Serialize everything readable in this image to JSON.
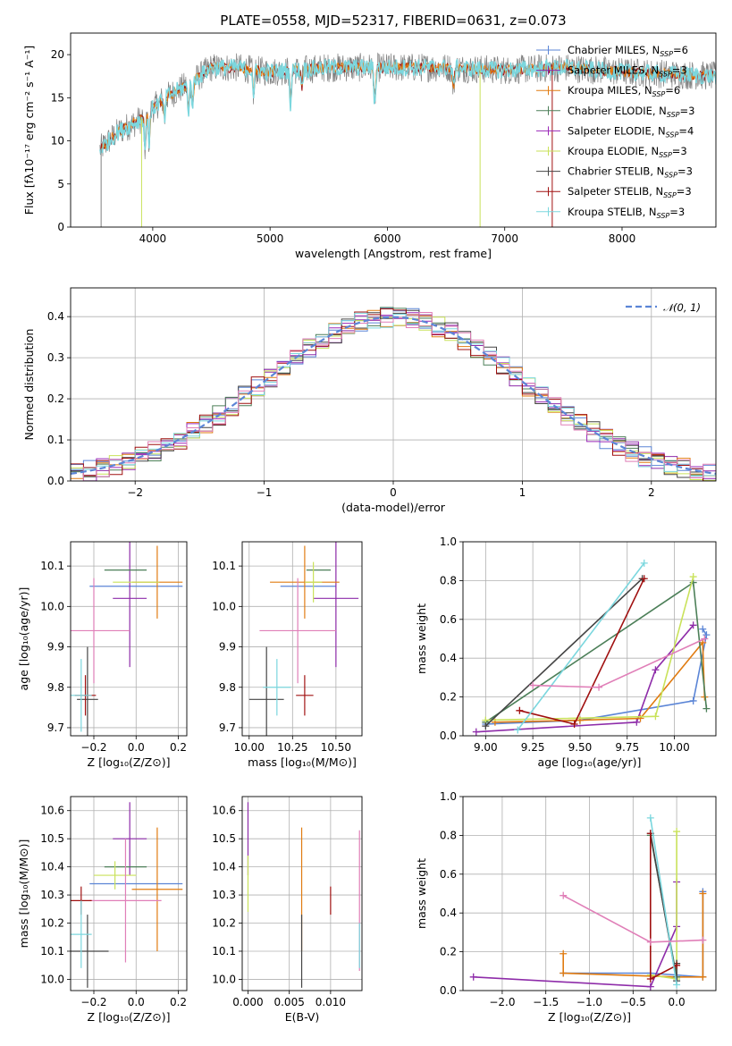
{
  "colors": {
    "s1": "#5b85d6",
    "s2": "#8e2ca9",
    "s3": "#e07b10",
    "s4": "#4c7f58",
    "s5": "#9a27b8",
    "s6": "#c9e25a",
    "s7": "#444444",
    "s8": "#a01010",
    "s9": "#7bd7de",
    "s10": "#e07fb8",
    "grid": "#b0b0b0",
    "spectrum_grey": "#808080"
  },
  "chart_data": [
    {
      "id": "spectrum",
      "type": "line",
      "title": "PLATE=0558, MJD=52317, FIBERID=0631, z=0.073",
      "xlabel": "wavelength [Angstrom, rest frame]",
      "ylabel": "Flux [fλ10⁻¹⁷ erg cm⁻² s⁻¹ A⁻¹]",
      "xlim": [
        3300,
        8800
      ],
      "ylim": [
        0,
        22.5
      ],
      "xticks": [
        "4000",
        "5000",
        "6000",
        "7000",
        "8000"
      ],
      "yticks": [
        "0",
        "5",
        "10",
        "15",
        "20"
      ],
      "grid": false,
      "legend_position": "top-right",
      "legend": [
        "Chabrier MILES, N_SSP=6",
        "Salpeter MILES, N_SSP=3",
        "Kroupa MILES, N_SSP=6",
        "Chabrier ELODIE, N_SSP=3",
        "Salpeter ELODIE, N_SSP=4",
        "Kroupa ELODIE, N_SSP=3",
        "Chabrier STELIB, N_SSP=3",
        "Salpeter STELIB, N_SSP=3",
        "Kroupa STELIB, N_SSP=3"
      ],
      "continuum": [
        [
          3550,
          9
        ],
        [
          3700,
          11
        ],
        [
          3900,
          12.5
        ],
        [
          4100,
          15
        ],
        [
          4300,
          16.5
        ],
        [
          4500,
          18.5
        ],
        [
          4700,
          18.5
        ],
        [
          5000,
          18
        ],
        [
          5500,
          18.5
        ],
        [
          6000,
          18.5
        ],
        [
          6500,
          18.5
        ],
        [
          7000,
          18.2
        ],
        [
          7500,
          18.5
        ],
        [
          8000,
          18
        ],
        [
          8800,
          17.5
        ]
      ]
    },
    {
      "id": "residuals",
      "type": "line",
      "xlabel": "(data-model)/error",
      "ylabel": "Normed distribution",
      "xlim": [
        -2.5,
        2.5
      ],
      "ylim": [
        0,
        0.47
      ],
      "xticks": [
        "−2",
        "−1",
        "0",
        "1",
        "2"
      ],
      "yticks": [
        "0.0",
        "0.1",
        "0.2",
        "0.3",
        "0.4"
      ],
      "grid": true,
      "legend_position": "top-right",
      "legend": [
        "𝒩(0, 1)"
      ],
      "series": [
        {
          "name": "𝒩(0, 1)",
          "mean": 0,
          "sigma": 1
        }
      ],
      "histogram_bin_width": 0.1
    },
    {
      "id": "age-vs-Z",
      "type": "scatter",
      "xlabel": "Z [log₁₀(Z/Z⊙)]",
      "ylabel": "age  [log₁₀(age/yr)]",
      "xlim": [
        -0.31,
        0.24
      ],
      "ylim": [
        9.68,
        10.16
      ],
      "xticks": [
        "−0.2",
        "0.0",
        "0.2"
      ],
      "yticks": [
        "9.7",
        "9.8",
        "9.9",
        "10.0",
        "10.1"
      ],
      "grid": true,
      "points": [
        {
          "x": 0.0,
          "y": 10.05,
          "xerr": 0.22,
          "yerr": 0.0,
          "c": "s1"
        },
        {
          "x": -0.03,
          "y": 10.02,
          "xerr": 0.08,
          "yerr": 0.17,
          "c": "s2"
        },
        {
          "x": 0.1,
          "y": 10.06,
          "xerr": 0.12,
          "yerr": 0.09,
          "c": "s3"
        },
        {
          "x": -0.05,
          "y": 10.09,
          "xerr": 0.1,
          "yerr": 0.0,
          "c": "s4"
        },
        {
          "x": 0.0,
          "y": 10.06,
          "xerr": 0.11,
          "yerr": 0.0,
          "c": "s6"
        },
        {
          "x": -0.2,
          "y": 9.94,
          "xerr": 0.17,
          "yerr": 0.13,
          "c": "s10"
        },
        {
          "x": -0.23,
          "y": 9.77,
          "xerr": 0.05,
          "yerr": 0.13,
          "c": "s7"
        },
        {
          "x": -0.24,
          "y": 9.78,
          "xerr": 0.05,
          "yerr": 0.05,
          "c": "s8"
        },
        {
          "x": -0.26,
          "y": 9.78,
          "xerr": 0.05,
          "yerr": 0.09,
          "c": "s9"
        }
      ]
    },
    {
      "id": "age-vs-mass",
      "type": "scatter",
      "xlabel": "mass [log₁₀(M/M⊙)]",
      "ylabel": "",
      "xlim": [
        9.96,
        10.65
      ],
      "ylim": [
        9.68,
        10.16
      ],
      "xticks": [
        "10.00",
        "10.25",
        "10.50"
      ],
      "yticks": [
        "9.7",
        "9.8",
        "9.9",
        "10.0",
        "10.1"
      ],
      "grid": true,
      "points": [
        {
          "x": 10.34,
          "y": 10.05,
          "xerr": 0.16,
          "yerr": 0.0,
          "c": "s1"
        },
        {
          "x": 10.5,
          "y": 10.02,
          "xerr": 0.13,
          "yerr": 0.17,
          "c": "s2"
        },
        {
          "x": 10.32,
          "y": 10.06,
          "xerr": 0.2,
          "yerr": 0.09,
          "c": "s3"
        },
        {
          "x": 10.4,
          "y": 10.09,
          "xerr": 0.07,
          "yerr": 0.0,
          "c": "s4"
        },
        {
          "x": 10.37,
          "y": 10.06,
          "xerr": 0.05,
          "yerr": 0.05,
          "c": "s6"
        },
        {
          "x": 10.28,
          "y": 9.94,
          "xerr": 0.22,
          "yerr": 0.13,
          "c": "s10"
        },
        {
          "x": 10.1,
          "y": 9.77,
          "xerr": 0.1,
          "yerr": 0.13,
          "c": "s7"
        },
        {
          "x": 10.32,
          "y": 9.78,
          "xerr": 0.05,
          "yerr": 0.05,
          "c": "s8"
        },
        {
          "x": 10.16,
          "y": 9.8,
          "xerr": 0.08,
          "yerr": 0.07,
          "c": "s9"
        }
      ]
    },
    {
      "id": "weight-vs-age",
      "type": "line",
      "xlabel": "age  [log₁₀(age/yr)]",
      "ylabel": "mass weight",
      "xlim": [
        8.88,
        10.22
      ],
      "ylim": [
        0.0,
        1.0
      ],
      "xticks": [
        "9.00",
        "9.25",
        "9.50",
        "9.75",
        "10.00"
      ],
      "yticks": [
        "0.0",
        "0.2",
        "0.4",
        "0.6",
        "0.8",
        "1.0"
      ],
      "grid": true,
      "series": [
        {
          "c": "s1",
          "x": [
            9.0,
            9.5,
            10.1,
            10.17,
            10.15
          ],
          "y": [
            0.06,
            0.08,
            0.18,
            0.52,
            0.55
          ]
        },
        {
          "c": "s2",
          "x": [
            8.95,
            9.8,
            9.9,
            10.1
          ],
          "y": [
            0.02,
            0.07,
            0.34,
            0.57
          ]
        },
        {
          "c": "s3",
          "x": [
            9.05,
            9.5,
            9.82,
            10.15,
            10.16
          ],
          "y": [
            0.07,
            0.08,
            0.09,
            0.48,
            0.2
          ]
        },
        {
          "c": "s4",
          "x": [
            9.0,
            10.1,
            10.17
          ],
          "y": [
            0.07,
            0.79,
            0.14
          ]
        },
        {
          "c": "s6",
          "x": [
            9.0,
            9.9,
            10.1
          ],
          "y": [
            0.08,
            0.1,
            0.82
          ]
        },
        {
          "c": "s7",
          "x": [
            9.0,
            9.83
          ],
          "y": [
            0.05,
            0.81
          ]
        },
        {
          "c": "s8",
          "x": [
            9.18,
            9.47,
            9.84
          ],
          "y": [
            0.13,
            0.06,
            0.81
          ]
        },
        {
          "c": "s9",
          "x": [
            9.17,
            9.84
          ],
          "y": [
            0.03,
            0.89
          ]
        },
        {
          "c": "s10",
          "x": [
            9.25,
            9.6,
            10.16
          ],
          "y": [
            0.26,
            0.25,
            0.5
          ]
        }
      ]
    },
    {
      "id": "mass-vs-Z",
      "type": "scatter",
      "xlabel": "Z [log₁₀(Z/Z⊙)]",
      "ylabel": "mass [log₁₀(M/M⊙)]",
      "xlim": [
        -0.31,
        0.24
      ],
      "ylim": [
        9.96,
        10.65
      ],
      "xticks": [
        "−0.2",
        "0.0",
        "0.2"
      ],
      "yticks": [
        "10.0",
        "10.1",
        "10.2",
        "10.3",
        "10.4",
        "10.5",
        "10.6"
      ],
      "grid": true,
      "points": [
        {
          "x": 0.0,
          "y": 10.34,
          "xerr": 0.22,
          "yerr": 0.0,
          "c": "s1"
        },
        {
          "x": -0.03,
          "y": 10.5,
          "xerr": 0.08,
          "yerr": 0.13,
          "c": "s2"
        },
        {
          "x": 0.1,
          "y": 10.32,
          "xerr": 0.12,
          "yerr": 0.22,
          "c": "s3"
        },
        {
          "x": -0.05,
          "y": 10.4,
          "xerr": 0.1,
          "yerr": 0.0,
          "c": "s4"
        },
        {
          "x": -0.1,
          "y": 10.37,
          "xerr": 0.1,
          "yerr": 0.05,
          "c": "s6"
        },
        {
          "x": -0.05,
          "y": 10.28,
          "xerr": 0.17,
          "yerr": 0.22,
          "c": "s10"
        },
        {
          "x": -0.23,
          "y": 10.1,
          "xerr": 0.1,
          "yerr": 0.13,
          "c": "s7"
        },
        {
          "x": -0.26,
          "y": 10.28,
          "xerr": 0.05,
          "yerr": 0.05,
          "c": "s8"
        },
        {
          "x": -0.26,
          "y": 10.16,
          "xerr": 0.05,
          "yerr": 0.12,
          "c": "s9"
        }
      ]
    },
    {
      "id": "mass-vs-EBV",
      "type": "scatter",
      "xlabel": "E(B-V)",
      "ylabel": "",
      "xlim": [
        -0.0007,
        0.0138
      ],
      "ylim": [
        9.96,
        10.65
      ],
      "xticks": [
        "0.000",
        "0.005",
        "0.010"
      ],
      "yticks": [
        "10.0",
        "10.1",
        "10.2",
        "10.3",
        "10.4",
        "10.5",
        "10.6"
      ],
      "grid": true,
      "points": [
        {
          "x": 0.0,
          "y": 10.5,
          "xerr": 0,
          "yerr": 0.13,
          "c": "s2"
        },
        {
          "x": 0.0,
          "y": 10.34,
          "xerr": 0,
          "yerr": 0.1,
          "c": "s6"
        },
        {
          "x": 0.0065,
          "y": 10.32,
          "xerr": 0,
          "yerr": 0.22,
          "c": "s3"
        },
        {
          "x": 0.0065,
          "y": 10.1,
          "xerr": 0,
          "yerr": 0.13,
          "c": "s7"
        },
        {
          "x": 0.01,
          "y": 10.28,
          "xerr": 0,
          "yerr": 0.05,
          "c": "s8"
        },
        {
          "x": 0.0135,
          "y": 10.28,
          "xerr": 0,
          "yerr": 0.25,
          "c": "s10"
        },
        {
          "x": 0.0135,
          "y": 10.12,
          "xerr": 0,
          "yerr": 0.08,
          "c": "s9"
        }
      ]
    },
    {
      "id": "weight-vs-Z",
      "type": "line",
      "xlabel": "Z [log₁₀(Z/Z⊙)]",
      "ylabel": "mass weight",
      "xlim": [
        -2.45,
        0.45
      ],
      "ylim": [
        0.0,
        1.0
      ],
      "xticks": [
        "−2.0",
        "−1.5",
        "−1.0",
        "−0.5",
        "0.0"
      ],
      "yticks": [
        "0.0",
        "0.2",
        "0.4",
        "0.6",
        "0.8",
        "1.0"
      ],
      "grid": true,
      "series": [
        {
          "c": "s1",
          "x": [
            -1.3,
            -0.3,
            0.3,
            0.3
          ],
          "y": [
            0.09,
            0.09,
            0.07,
            0.51
          ]
        },
        {
          "c": "s2",
          "x": [
            -2.33,
            -0.3,
            0.0,
            0.0
          ],
          "y": [
            0.07,
            0.02,
            0.33,
            0.56
          ]
        },
        {
          "c": "s3",
          "x": [
            -1.3,
            -1.3,
            0.0,
            0.3,
            0.3
          ],
          "y": [
            0.19,
            0.09,
            0.07,
            0.07,
            0.5
          ]
        },
        {
          "c": "s4",
          "x": [
            -0.3,
            0.0,
            0.0
          ],
          "y": [
            0.8,
            0.07,
            0.14
          ]
        },
        {
          "c": "s6",
          "x": [
            -0.3,
            0.0,
            0.0
          ],
          "y": [
            0.08,
            0.06,
            0.82
          ]
        },
        {
          "c": "s7",
          "x": [
            -0.3,
            0.0,
            0.0
          ],
          "y": [
            0.81,
            0.05,
            0.14
          ]
        },
        {
          "c": "s8",
          "x": [
            -0.3,
            -0.3,
            0.0
          ],
          "y": [
            0.81,
            0.06,
            0.13
          ]
        },
        {
          "c": "s9",
          "x": [
            -0.3,
            0.0
          ],
          "y": [
            0.89,
            0.03
          ]
        },
        {
          "c": "s10",
          "x": [
            -1.3,
            -0.3,
            0.3
          ],
          "y": [
            0.49,
            0.25,
            0.26
          ]
        }
      ]
    }
  ]
}
